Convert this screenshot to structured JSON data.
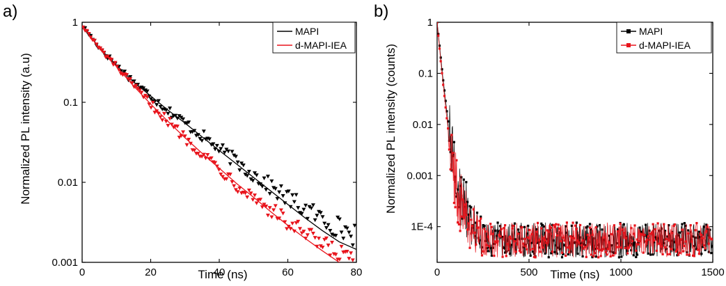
{
  "chart_data": [
    {
      "type": "scatter",
      "panel_label": "a)",
      "xlabel": "Time (ns)",
      "ylabel": "Normalized PL intensity (a.u)",
      "xlim": [
        0,
        80
      ],
      "ylim": [
        0.001,
        1
      ],
      "yscale": "log",
      "x_ticks": [
        0,
        20,
        40,
        60,
        80
      ],
      "x_tick_labels": [
        "0",
        "20",
        "40",
        "60",
        "80"
      ],
      "y_ticks": [
        0.001,
        0.01,
        0.1,
        1
      ],
      "y_tick_labels": [
        "0.001",
        "0.01",
        "0.1",
        "1"
      ],
      "legend_position": "top-right",
      "series": [
        {
          "name": "MAPI",
          "color": "#000000",
          "marker": "triangle-down",
          "x": [
            0,
            5,
            10,
            15,
            20,
            25,
            30,
            35,
            40,
            45,
            50,
            55,
            60,
            65,
            70,
            75,
            80
          ],
          "y": [
            0.92,
            0.48,
            0.29,
            0.18,
            0.12,
            0.08,
            0.055,
            0.038,
            0.026,
            0.018,
            0.0125,
            0.0088,
            0.0063,
            0.0046,
            0.0035,
            0.0027,
            0.0022
          ],
          "fit_x": [
            0,
            5,
            10,
            15,
            20,
            25,
            30,
            35,
            40,
            45,
            50,
            55,
            60,
            65,
            70,
            75,
            80
          ],
          "fit_y": [
            0.92,
            0.48,
            0.29,
            0.18,
            0.12,
            0.08,
            0.055,
            0.037,
            0.025,
            0.017,
            0.0115,
            0.0078,
            0.0053,
            0.0036,
            0.0025,
            0.0018,
            0.00145
          ]
        },
        {
          "name": "d-MAPI-IEA",
          "color": "#e8141c",
          "marker": "triangle-down",
          "x": [
            0,
            5,
            10,
            15,
            20,
            25,
            30,
            35,
            40,
            45,
            50,
            55,
            60,
            65,
            70,
            75,
            80
          ],
          "y": [
            0.92,
            0.47,
            0.28,
            0.16,
            0.095,
            0.058,
            0.036,
            0.023,
            0.015,
            0.0097,
            0.0066,
            0.0045,
            0.0031,
            0.0022,
            0.0016,
            0.00125,
            0.001
          ],
          "fit_x": [
            0,
            5,
            10,
            15,
            20,
            25,
            30,
            35,
            40,
            45,
            50,
            55,
            60,
            65,
            70,
            75,
            80
          ],
          "fit_y": [
            0.92,
            0.47,
            0.28,
            0.16,
            0.095,
            0.058,
            0.036,
            0.023,
            0.015,
            0.0097,
            0.0065,
            0.0043,
            0.0029,
            0.002,
            0.0014,
            0.001,
            0.00075
          ]
        }
      ]
    },
    {
      "type": "line",
      "panel_label": "b)",
      "xlabel": "Time (ns)",
      "ylabel": "Normalized PL intensity (counts)",
      "xlim": [
        0,
        1500
      ],
      "ylim": [
        2e-05,
        1
      ],
      "yscale": "log",
      "x_ticks": [
        0,
        500,
        1000,
        1500
      ],
      "x_tick_labels": [
        "0",
        "500",
        "1000",
        "1500"
      ],
      "y_ticks": [
        0.0001,
        0.001,
        0.01,
        0.1,
        1
      ],
      "y_tick_labels": [
        "1E-4",
        "0.001",
        "0.01",
        "0.1",
        "1"
      ],
      "legend_position": "top-right",
      "series": [
        {
          "name": "MAPI",
          "color": "#000000",
          "marker": "square",
          "noise_floor": [
            2.5e-05,
            0.00012
          ],
          "x": [
            0,
            10,
            20,
            30,
            40,
            50,
            60,
            70,
            80,
            90,
            100,
            110,
            120,
            130,
            140,
            150,
            160,
            170,
            180,
            190,
            200,
            220,
            240
          ],
          "y": [
            1,
            0.45,
            0.2,
            0.09,
            0.045,
            0.022,
            0.011,
            0.0062,
            0.0035,
            0.002,
            0.0012,
            0.0008,
            0.00055,
            0.0004,
            0.0003,
            0.00023,
            0.00018,
            0.00014,
            0.00011,
            9e-05,
            7.5e-05,
            6e-05,
            5e-05
          ]
        },
        {
          "name": "d-MAPI-IEA",
          "color": "#e8141c",
          "marker": "square",
          "noise_floor": [
            2.5e-05,
            0.00012
          ],
          "x": [
            0,
            10,
            20,
            30,
            40,
            50,
            60,
            70,
            80,
            90,
            100,
            110,
            120,
            130,
            140,
            150,
            160,
            170,
            180,
            190,
            200,
            220,
            240
          ],
          "y": [
            1,
            0.4,
            0.17,
            0.075,
            0.035,
            0.016,
            0.008,
            0.0042,
            0.0023,
            0.0013,
            0.0008,
            0.0005,
            0.00036,
            0.00027,
            0.0002,
            0.00016,
            0.00013,
            0.0001,
            9e-05,
            8e-05,
            7e-05,
            6e-05,
            5e-05
          ]
        }
      ]
    }
  ]
}
